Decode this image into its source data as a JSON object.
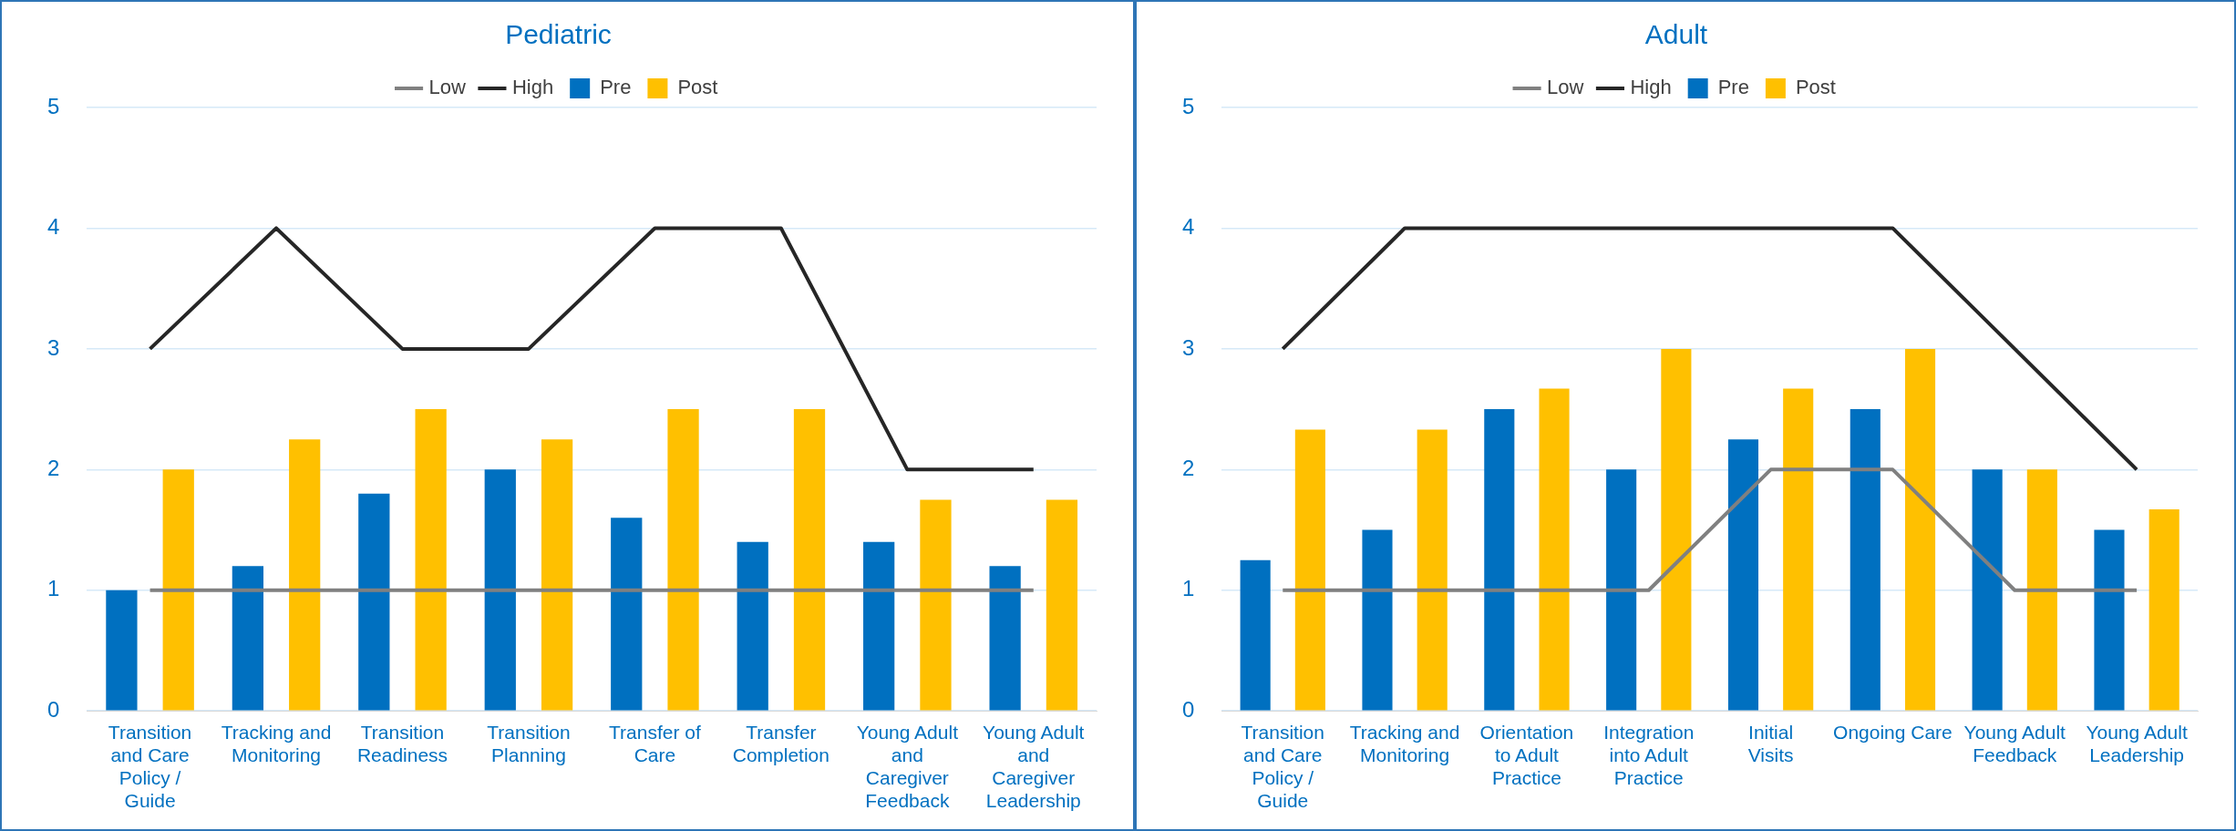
{
  "chart_data": [
    {
      "type": "bar",
      "title": "Pediatric",
      "categories": [
        "Transition and Care Policy / Guide",
        "Tracking and Monitoring",
        "Transition Readiness",
        "Transition Planning",
        "Transfer of Care",
        "Transfer Completion",
        "Young Adult and Caregiver Feedback",
        "Young Adult and Caregiver Leadership"
      ],
      "series": [
        {
          "name": "Pre",
          "color": "#0070c0",
          "values": [
            1,
            1.2,
            1.8,
            2,
            1.6,
            1.4,
            1.4,
            1.2
          ]
        },
        {
          "name": "Post",
          "color": "#ffc000",
          "values": [
            2,
            2.25,
            2.5,
            2.25,
            2.5,
            2.5,
            1.75,
            1.75
          ]
        },
        {
          "name": "Low",
          "type": "line",
          "color": "#808080",
          "values": [
            1,
            1,
            1,
            1,
            1,
            1,
            1,
            1
          ]
        },
        {
          "name": "High",
          "type": "line",
          "color": "#262626",
          "values": [
            3,
            4,
            3,
            3,
            4,
            4,
            2,
            2
          ]
        }
      ],
      "ylim": [
        0,
        5
      ],
      "yticks": [
        0,
        1,
        2,
        3,
        4,
        5
      ],
      "grid": "y",
      "legend": "top",
      "marker": "none",
      "line_style": "solid"
    },
    {
      "type": "bar",
      "title": "Adult",
      "categories": [
        "Transition and Care Policy / Guide",
        "Tracking and Monitoring",
        "Orientation to Adult Practice",
        "Integration into Adult Practice",
        "Initial Visits",
        "Ongoing Care",
        "Young Adult Feedback",
        "Young Adult Leadership"
      ],
      "series": [
        {
          "name": "Pre",
          "color": "#0070c0",
          "values": [
            1.25,
            1.5,
            2.5,
            2,
            2.25,
            2.5,
            2,
            1.5
          ]
        },
        {
          "name": "Post",
          "color": "#ffc000",
          "values": [
            2.33,
            2.33,
            2.67,
            3,
            2.67,
            3,
            2,
            1.67
          ]
        },
        {
          "name": "Low",
          "type": "line",
          "color": "#808080",
          "values": [
            1,
            1,
            1,
            1,
            2,
            2,
            1,
            1
          ]
        },
        {
          "name": "High",
          "type": "line",
          "color": "#262626",
          "values": [
            3,
            4,
            4,
            4,
            4,
            4,
            3,
            2
          ]
        }
      ],
      "ylim": [
        0,
        5
      ],
      "yticks": [
        0,
        1,
        2,
        3,
        4,
        5
      ],
      "grid": "y",
      "legend": "top",
      "marker": "none",
      "line_style": "solid"
    }
  ]
}
